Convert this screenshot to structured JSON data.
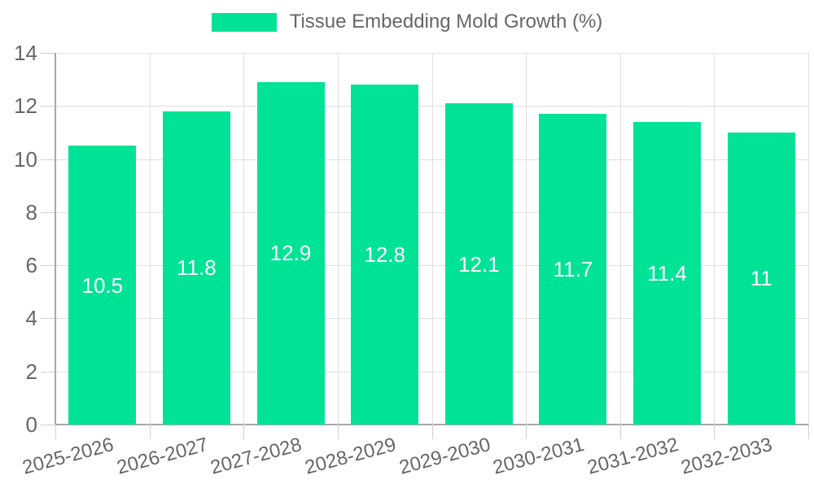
{
  "legend": {
    "label": "Tissue Embedding Mold Growth (%)"
  },
  "chart_data": {
    "type": "bar",
    "title": "Tissue Embedding Mold Growth (%)",
    "series_name": "Tissue Embedding Mold Growth (%)",
    "categories": [
      "2025-2026",
      "2026-2027",
      "2027-2028",
      "2028-2029",
      "2029-2030",
      "2030-2031",
      "2031-2032",
      "2032-2033"
    ],
    "values": [
      10.5,
      11.8,
      12.9,
      12.8,
      12.1,
      11.7,
      11.4,
      11
    ],
    "value_labels": [
      "10.5",
      "11.8",
      "12.9",
      "12.8",
      "12.1",
      "11.7",
      "11.4",
      "11"
    ],
    "xlabel": "",
    "ylabel": "",
    "ylim": [
      0,
      14
    ],
    "yticks": [
      0,
      2,
      4,
      6,
      8,
      10,
      12,
      14
    ],
    "grid": true,
    "legend_position": "top-center",
    "x_label_rotation_deg": -15,
    "colors": {
      "bar": "#00E396",
      "value_label": "#ffffff",
      "axis_text": "#666666",
      "gridline": "#e0e0e0",
      "tick": "#cfcfcf",
      "axis_line": "#a8a8a8",
      "background": "#ffffff"
    }
  }
}
